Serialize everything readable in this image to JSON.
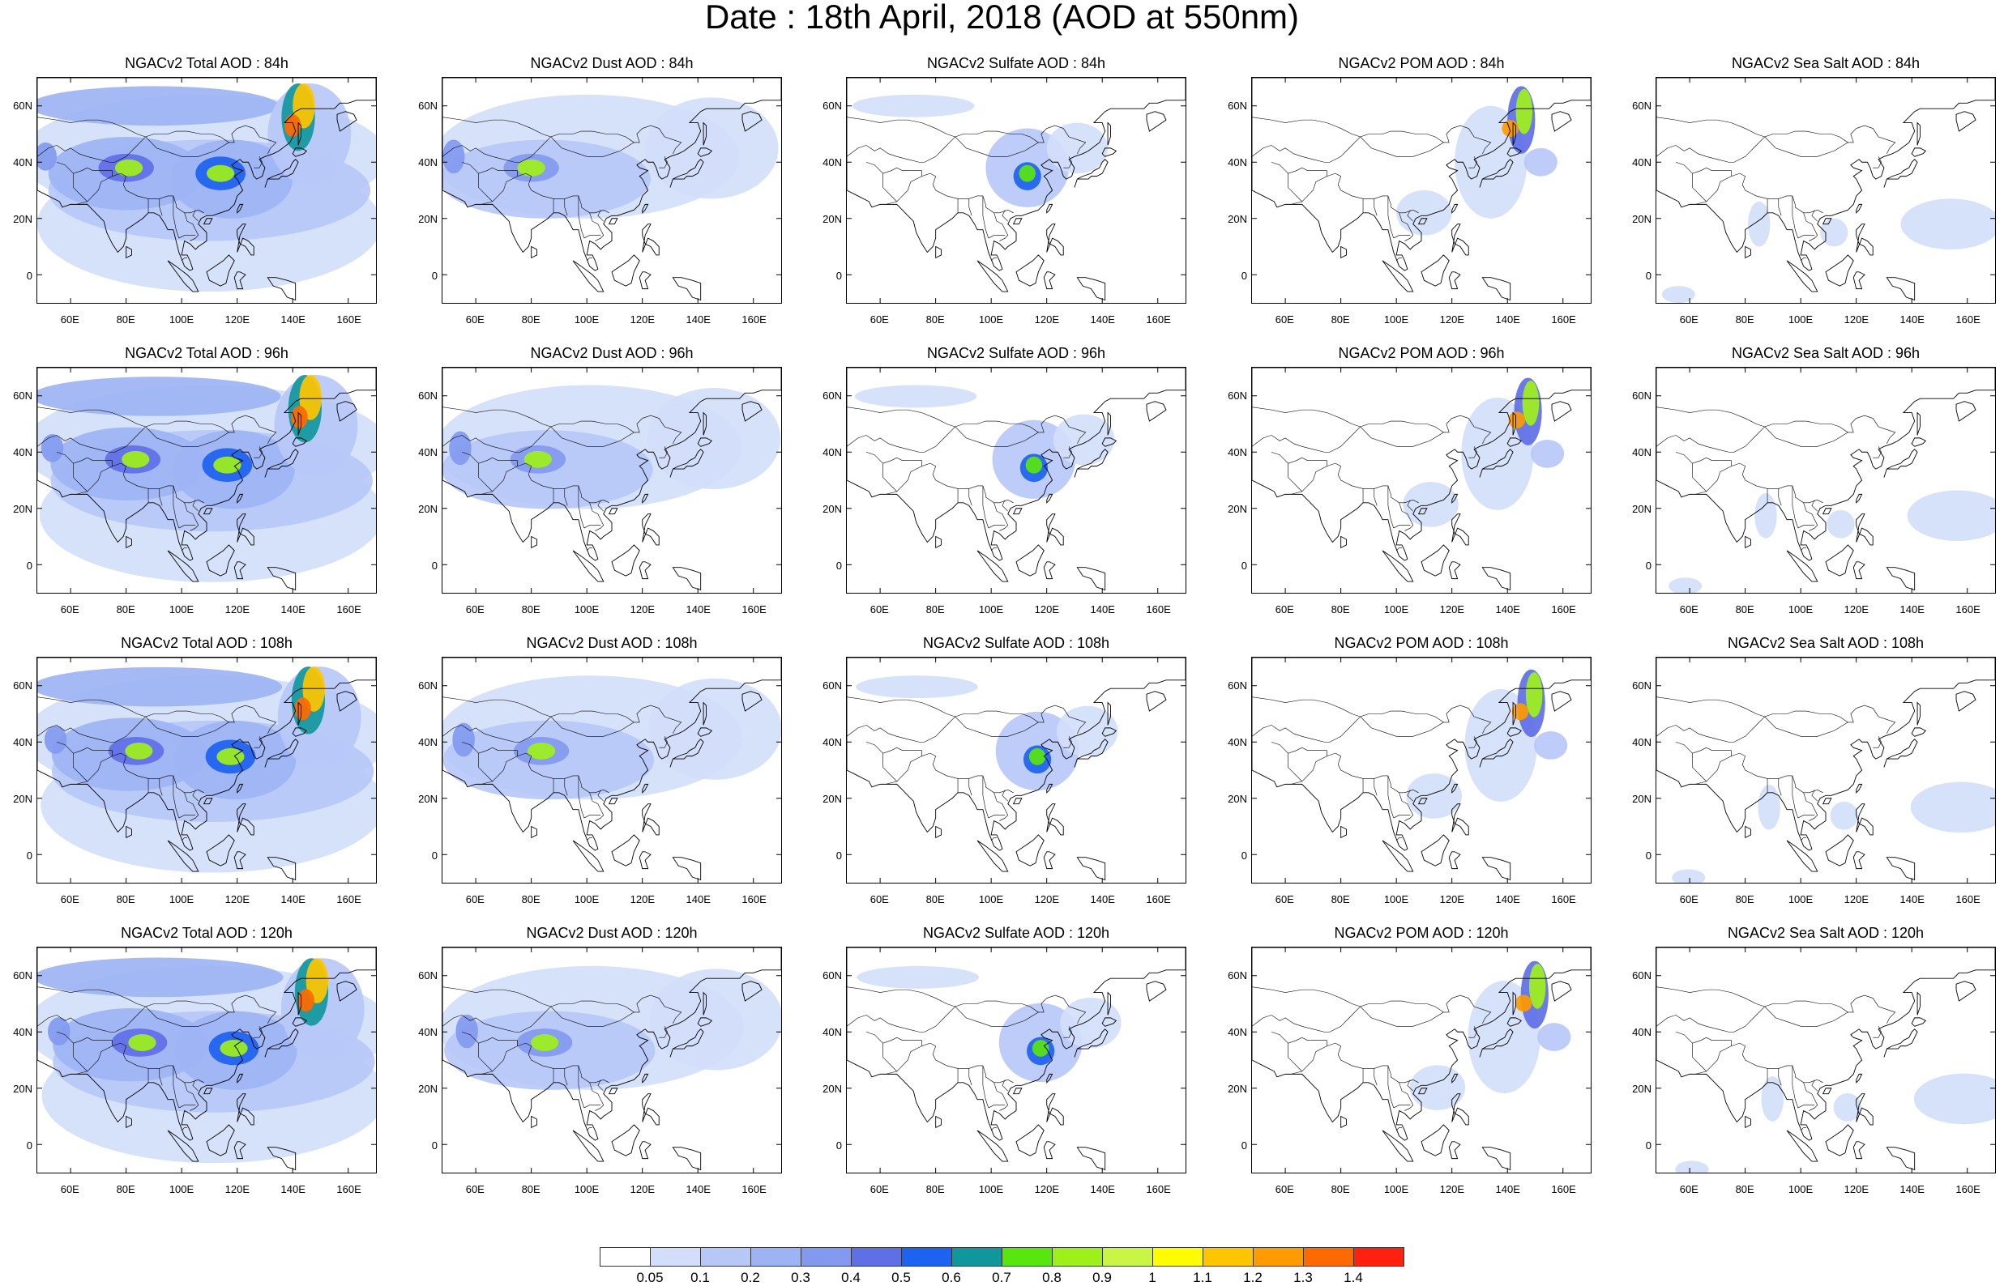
{
  "title": "Date : 18th April, 2018 (AOD at 550nm)",
  "panels": [
    {
      "title": "NGACv2 Total AOD : 84h",
      "species": "total",
      "hour": "84h"
    },
    {
      "title": "NGACv2 Dust AOD : 84h",
      "species": "dust",
      "hour": "84h"
    },
    {
      "title": "NGACv2 Sulfate AOD : 84h",
      "species": "sulfate",
      "hour": "84h"
    },
    {
      "title": "NGACv2 POM AOD : 84h",
      "species": "pom",
      "hour": "84h"
    },
    {
      "title": "NGACv2 Sea Salt AOD : 84h",
      "species": "seasalt",
      "hour": "84h"
    },
    {
      "title": "NGACv2 Total AOD : 96h",
      "species": "total",
      "hour": "96h"
    },
    {
      "title": "NGACv2 Dust AOD : 96h",
      "species": "dust",
      "hour": "96h"
    },
    {
      "title": "NGACv2 Sulfate AOD : 96h",
      "species": "sulfate",
      "hour": "96h"
    },
    {
      "title": "NGACv2 POM AOD : 96h",
      "species": "pom",
      "hour": "96h"
    },
    {
      "title": "NGACv2 Sea Salt AOD : 96h",
      "species": "seasalt",
      "hour": "96h"
    },
    {
      "title": "NGACv2 Total AOD : 108h",
      "species": "total",
      "hour": "108h"
    },
    {
      "title": "NGACv2 Dust AOD : 108h",
      "species": "dust",
      "hour": "108h"
    },
    {
      "title": "NGACv2 Sulfate AOD : 108h",
      "species": "sulfate",
      "hour": "108h"
    },
    {
      "title": "NGACv2 POM AOD : 108h",
      "species": "pom",
      "hour": "108h"
    },
    {
      "title": "NGACv2 Sea Salt AOD : 108h",
      "species": "seasalt",
      "hour": "108h"
    },
    {
      "title": "NGACv2 Total AOD : 120h",
      "species": "total",
      "hour": "120h"
    },
    {
      "title": "NGACv2 Dust AOD : 120h",
      "species": "dust",
      "hour": "120h"
    },
    {
      "title": "NGACv2 Sulfate AOD : 120h",
      "species": "sulfate",
      "hour": "120h"
    },
    {
      "title": "NGACv2 POM AOD : 120h",
      "species": "pom",
      "hour": "120h"
    },
    {
      "title": "NGACv2 Sea Salt  AOD : 120h",
      "species": "seasalt",
      "hour": "120h"
    }
  ],
  "lat_ticks": [
    "60N",
    "40N",
    "20N",
    "0"
  ],
  "lon_ticks": [
    "60E",
    "80E",
    "100E",
    "120E",
    "140E",
    "160E"
  ],
  "colorbar": {
    "labels": [
      "0.05",
      "0.1",
      "0.2",
      "0.3",
      "0.4",
      "0.5",
      "0.6",
      "0.7",
      "0.8",
      "0.9",
      "1",
      "1.1",
      "1.2",
      "1.3",
      "1.4"
    ],
    "colors": [
      "#ffffff",
      "#d3defa",
      "#b7c8f7",
      "#9db4f4",
      "#8299ef",
      "#5f6fe6",
      "#1d62f0",
      "#10979c",
      "#59e50e",
      "#9ef01a",
      "#c9f545",
      "#fffc00",
      "#ffc500",
      "#ff9a00",
      "#ff6a00",
      "#ff2010"
    ]
  },
  "map_style": {
    "land_outline": "#000000",
    "ocean": "#ffffff"
  }
}
